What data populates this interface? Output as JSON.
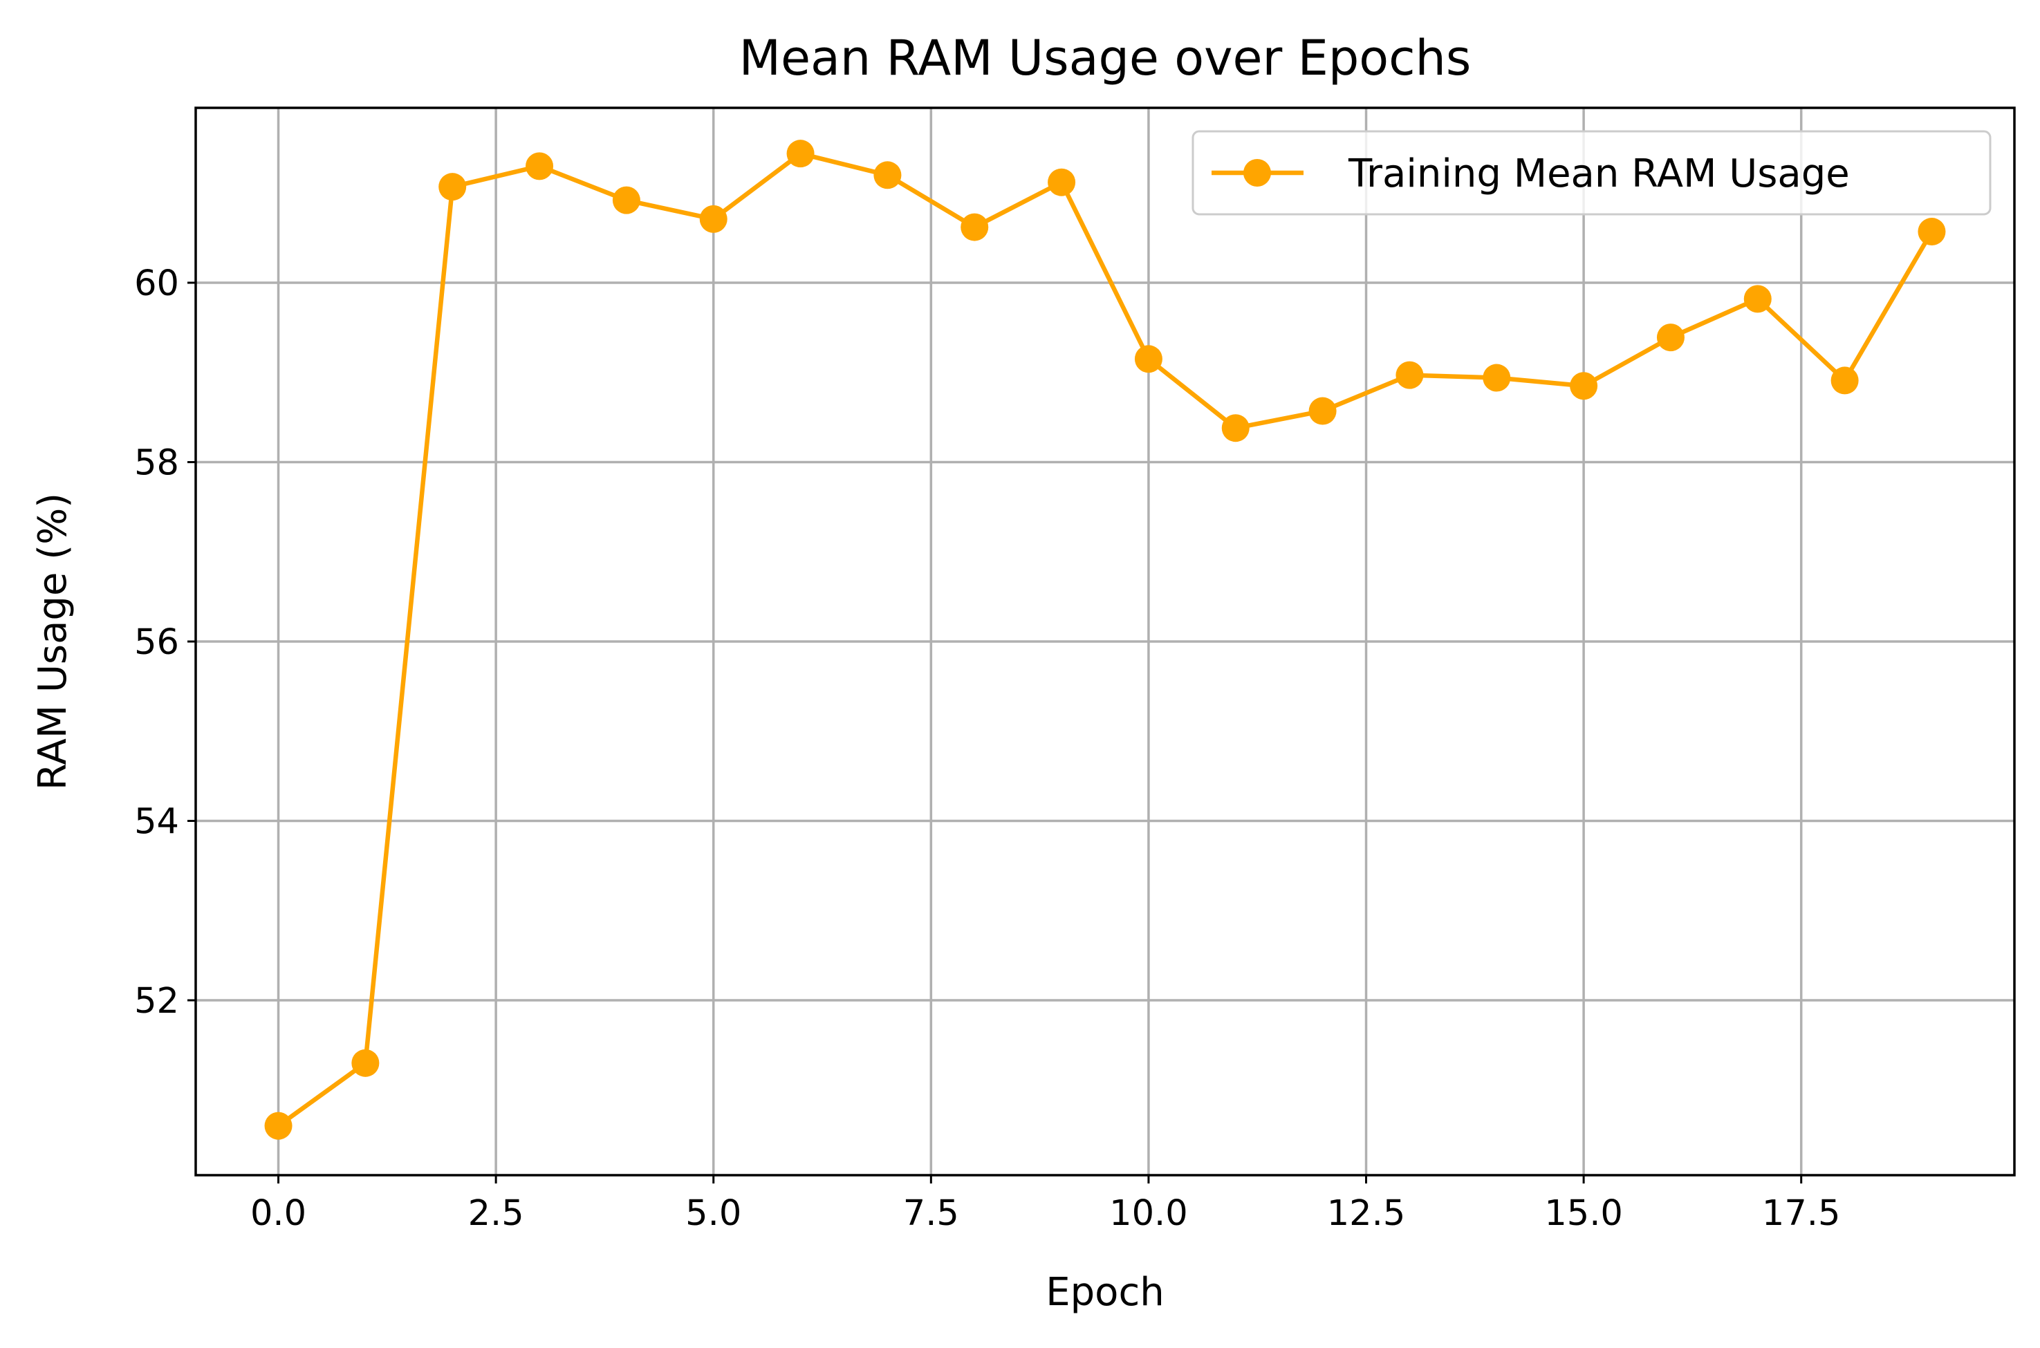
{
  "chart_data": {
    "type": "line",
    "title": "Mean RAM Usage over Epochs",
    "xlabel": "Epoch",
    "ylabel": "RAM Usage (%)",
    "xlim": [
      -0.95,
      19.95
    ],
    "ylim": [
      50.05,
      61.95
    ],
    "x_ticks": [
      0.0,
      2.5,
      5.0,
      7.5,
      10.0,
      12.5,
      15.0,
      17.5
    ],
    "x_tick_labels": [
      "0.0",
      "2.5",
      "5.0",
      "7.5",
      "10.0",
      "12.5",
      "15.0",
      "17.5"
    ],
    "y_ticks": [
      52,
      54,
      56,
      58,
      60
    ],
    "y_tick_labels": [
      "52",
      "54",
      "56",
      "58",
      "60"
    ],
    "grid": true,
    "legend_position": "top-right",
    "series": [
      {
        "name": "Training Mean RAM Usage",
        "color": "#ffa500",
        "marker": "circle",
        "x": [
          0,
          1,
          2,
          3,
          4,
          5,
          6,
          7,
          8,
          9,
          10,
          11,
          12,
          13,
          14,
          15,
          16,
          17,
          18,
          19
        ],
        "y": [
          50.6,
          51.3,
          61.07,
          61.3,
          60.92,
          60.71,
          61.44,
          61.2,
          60.62,
          61.12,
          59.15,
          58.38,
          58.57,
          58.97,
          58.94,
          58.85,
          59.39,
          59.82,
          58.91,
          60.57
        ]
      }
    ]
  }
}
